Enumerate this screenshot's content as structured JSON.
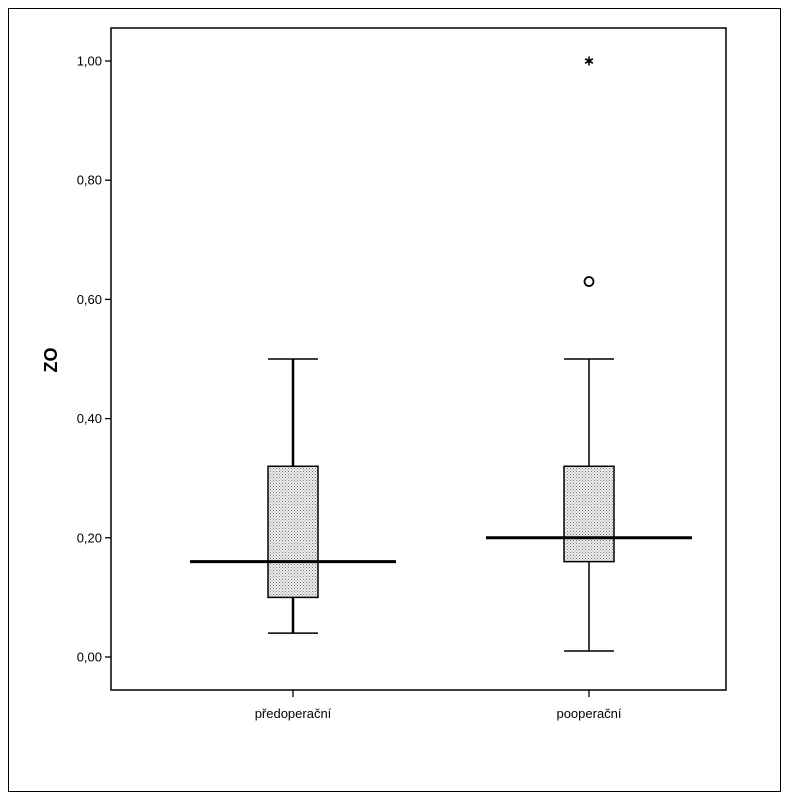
{
  "chart_data": {
    "type": "boxplot",
    "ylabel": "ZO",
    "ylim": [
      0,
      1.05
    ],
    "yticks": [
      "0,00",
      "0,20",
      "0,40",
      "0,60",
      "0,80",
      "1,00"
    ],
    "ytick_values": [
      0,
      0.2,
      0.4,
      0.6,
      0.8,
      1.0
    ],
    "categories": [
      "předoperační",
      "pooperační"
    ],
    "boxes": [
      {
        "category": "předoperační",
        "min": 0.04,
        "q1": 0.1,
        "median": 0.16,
        "q3": 0.32,
        "max": 0.5,
        "outliers": [],
        "extremes": []
      },
      {
        "category": "pooperační",
        "min": 0.01,
        "q1": 0.16,
        "median": 0.2,
        "q3": 0.32,
        "max": 0.5,
        "outliers": [
          0.63
        ],
        "extremes": [
          1.0
        ]
      }
    ],
    "grid": false,
    "legend": "none"
  }
}
